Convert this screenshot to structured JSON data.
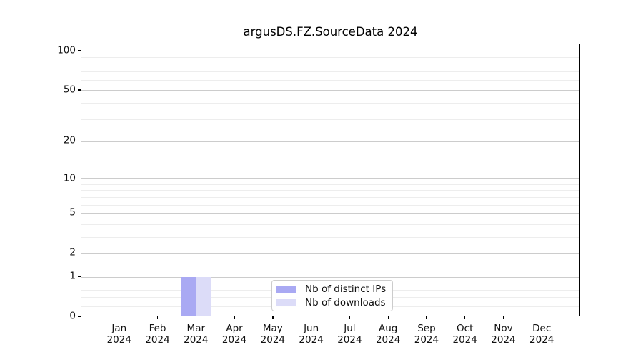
{
  "chart_data": {
    "type": "bar",
    "title": "argusDS.FZ.SourceData 2024",
    "categories": [
      "Jan",
      "Feb",
      "Mar",
      "Apr",
      "May",
      "Jun",
      "Jul",
      "Aug",
      "Sep",
      "Oct",
      "Nov",
      "Dec"
    ],
    "category_year": "2024",
    "series": [
      {
        "name": "Nb of distinct IPs",
        "color": "#a9a9f3",
        "values": [
          0,
          0,
          1,
          0,
          0,
          0,
          0,
          0,
          0,
          0,
          0,
          0
        ]
      },
      {
        "name": "Nb of downloads",
        "color": "#dcdcf8",
        "values": [
          0,
          0,
          1,
          0,
          0,
          0,
          0,
          0,
          0,
          0,
          0,
          0
        ]
      }
    ],
    "xlabel": "",
    "ylabel": "",
    "y_scale": "log1p",
    "y_ticks": [
      0,
      1,
      2,
      5,
      10,
      20,
      50,
      100
    ],
    "y_minor_ticks": [
      0.2,
      0.4,
      0.6,
      0.8,
      3,
      4,
      6,
      7,
      8,
      9,
      30,
      40,
      60,
      70,
      80,
      90
    ],
    "ylim": [
      0,
      113
    ],
    "grid": true,
    "legend": {
      "position": "bottom-center",
      "entries": [
        "Nb of distinct IPs",
        "Nb of downloads"
      ]
    },
    "colors": {
      "major_grid": "#cccccc",
      "minor_grid": "#ededed",
      "spine": "#000000",
      "text": "#111111"
    }
  }
}
